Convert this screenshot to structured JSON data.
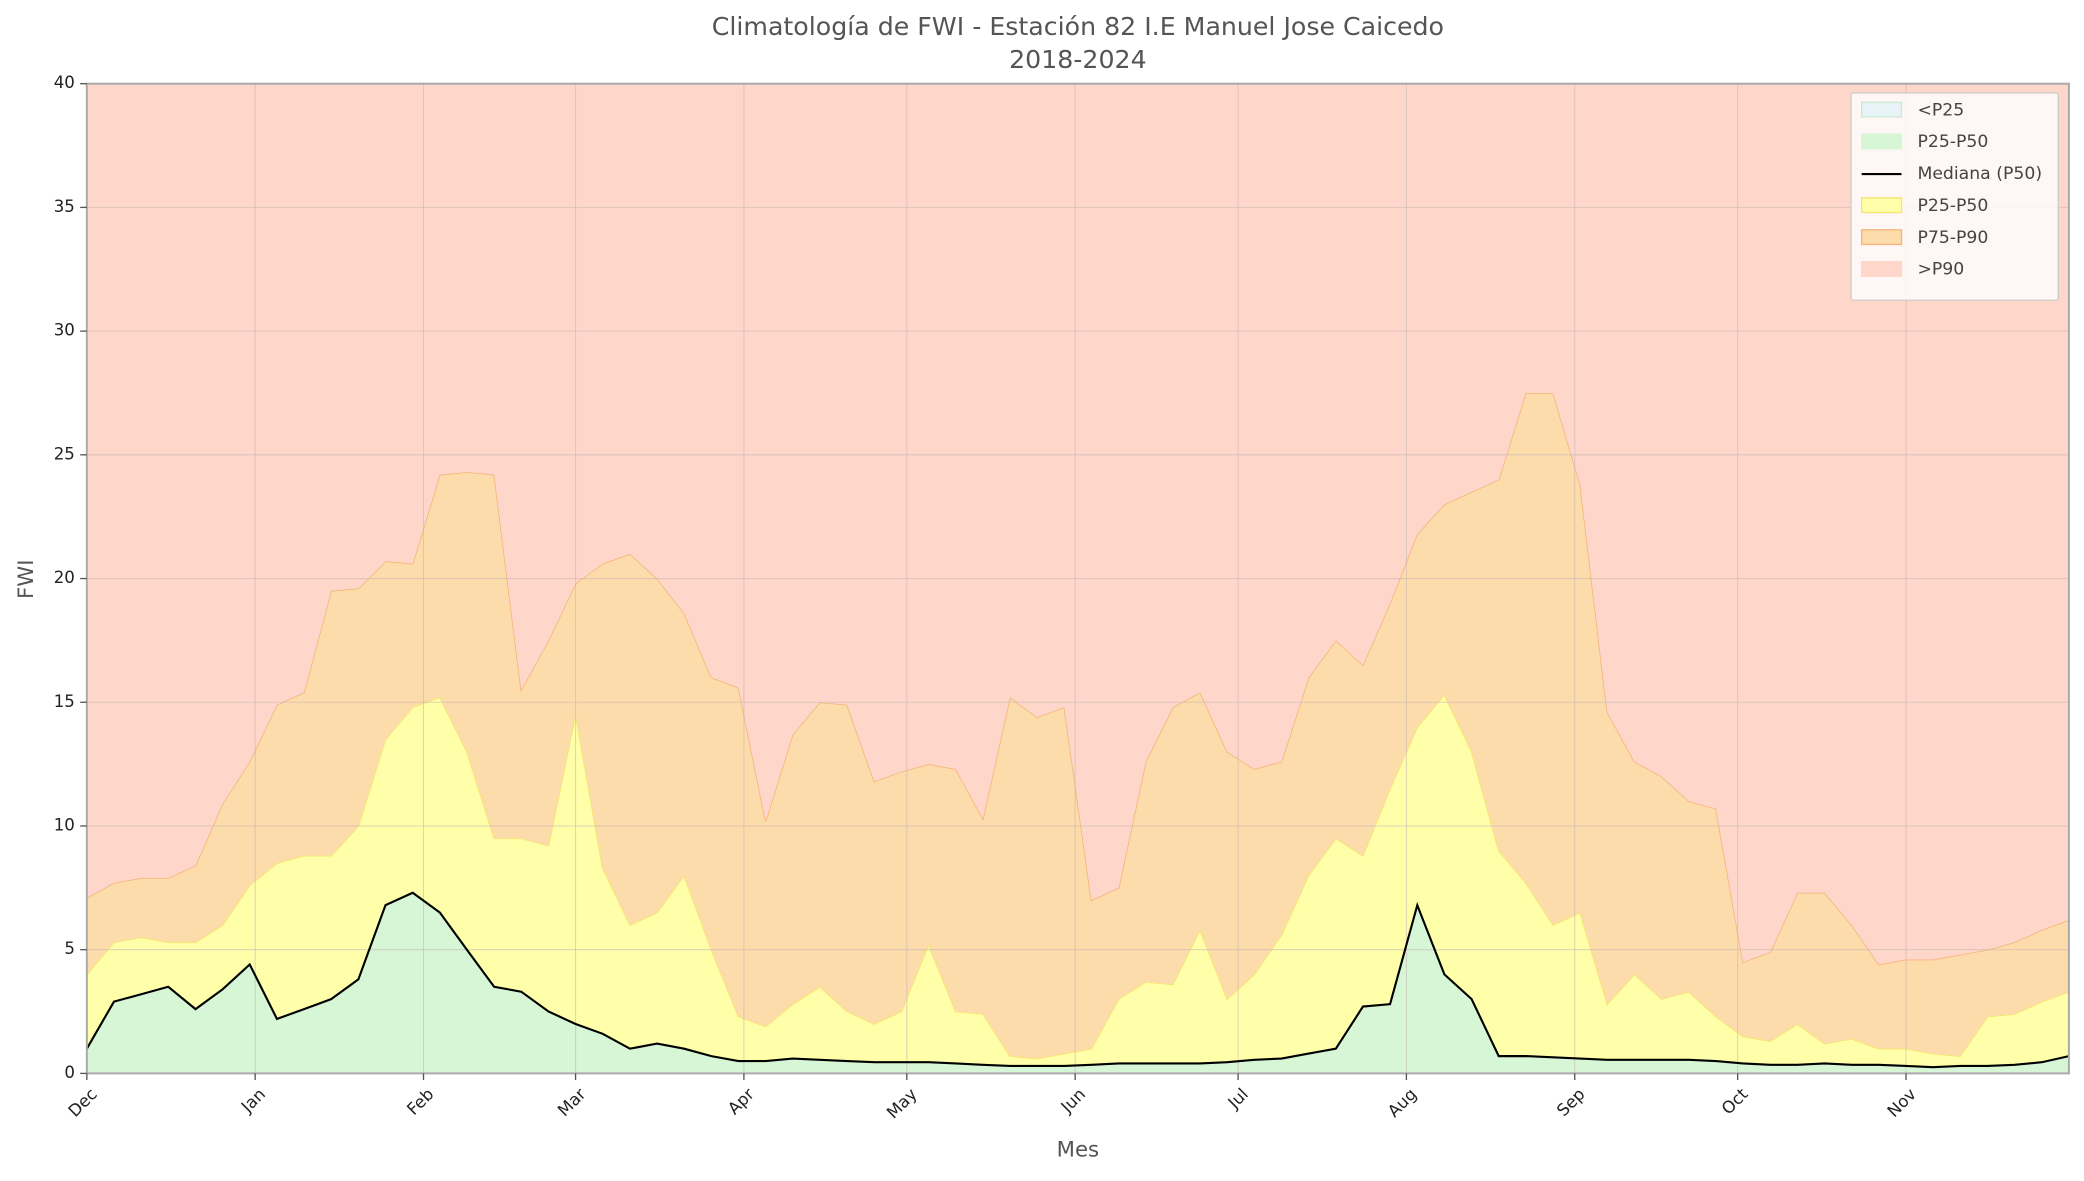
{
  "chart_data": {
    "type": "area",
    "title": "Climatología de FWI - Estación 82 I.E Manuel Jose Caicedo",
    "subtitle": "2018-2024",
    "xlabel": "Mes",
    "ylabel": "FWI",
    "x": [
      0,
      5,
      10,
      15,
      20,
      25,
      30,
      35,
      40,
      45,
      50,
      55,
      60,
      65,
      70,
      75,
      80,
      85,
      90,
      95,
      100,
      105,
      110,
      115,
      120,
      125,
      130,
      135,
      140,
      145,
      150,
      155,
      160,
      165,
      170,
      175,
      180,
      185,
      190,
      195,
      200,
      205,
      210,
      215,
      220,
      225,
      230,
      235,
      240,
      245,
      250,
      255,
      260,
      265,
      270,
      275,
      280,
      285,
      290,
      295,
      300,
      305,
      310,
      315,
      320,
      325,
      330,
      335,
      340,
      345,
      350,
      355,
      360,
      365
    ],
    "xlim": [
      0,
      365
    ],
    "xticks": [
      {
        "value": 0,
        "label": "Dec"
      },
      {
        "value": 31,
        "label": "Jan"
      },
      {
        "value": 62,
        "label": "Feb"
      },
      {
        "value": 90,
        "label": "Mar"
      },
      {
        "value": 121,
        "label": "Apr"
      },
      {
        "value": 151,
        "label": "May"
      },
      {
        "value": 182,
        "label": "Jun"
      },
      {
        "value": 212,
        "label": "Jul"
      },
      {
        "value": 243,
        "label": "Aug"
      },
      {
        "value": 274,
        "label": "Sep"
      },
      {
        "value": 304,
        "label": "Oct"
      },
      {
        "value": 335,
        "label": "Nov"
      }
    ],
    "ylim": [
      0,
      40
    ],
    "yticks": [
      0,
      5,
      10,
      15,
      20,
      25,
      30,
      35,
      40
    ],
    "grid": true,
    "legend": "upper right",
    "series": [
      {
        "name": "<P25",
        "kind": "area",
        "color": "#e8f3f7",
        "edgecolor": "#c8ecd0",
        "values": [
          0.2,
          0.4,
          0.6,
          0.7,
          0.6,
          0.5,
          0.4,
          0.3,
          0.3,
          0.4,
          0.7,
          2.4,
          2.2,
          1.5,
          0.6,
          0.5,
          0.5,
          0.4,
          0.3,
          0.3,
          0.3,
          0.3,
          0.3,
          0.25,
          0.2,
          0.2,
          0.2,
          0.2,
          0.15,
          0.15,
          0.15,
          0.15,
          0.1,
          0.1,
          0.1,
          0.1,
          0.1,
          0.1,
          0.1,
          0.15,
          0.15,
          0.15,
          0.2,
          0.25,
          0.3,
          0.35,
          0.4,
          0.35,
          0.5,
          0.6,
          0.5,
          0.4,
          0.2,
          0.2,
          0.2,
          0.2,
          0.2,
          0.2,
          0.2,
          0.2,
          0.2,
          0.15,
          0.1,
          0.1,
          0.1,
          0.1,
          0.1,
          0.1,
          0.1,
          0.1,
          0.1,
          0.1,
          0.15,
          0.2
        ]
      },
      {
        "name": "P25-P50",
        "kind": "area",
        "color": "#d6f6d6",
        "edgecolor": "#d6f6d6",
        "values": [
          1.0,
          2.9,
          3.2,
          3.5,
          2.6,
          3.4,
          4.4,
          2.2,
          2.6,
          3.0,
          3.8,
          6.8,
          7.3,
          6.5,
          5.0,
          3.5,
          3.3,
          2.5,
          2.0,
          1.6,
          1.0,
          1.2,
          1.0,
          0.7,
          0.5,
          0.5,
          0.6,
          0.55,
          0.5,
          0.45,
          0.45,
          0.45,
          0.4,
          0.35,
          0.3,
          0.3,
          0.3,
          0.35,
          0.4,
          0.4,
          0.4,
          0.4,
          0.45,
          0.55,
          0.6,
          0.8,
          1.0,
          2.7,
          2.8,
          6.8,
          4.0,
          3.0,
          0.7,
          0.7,
          0.65,
          0.6,
          0.55,
          0.55,
          0.55,
          0.55,
          0.5,
          0.4,
          0.35,
          0.35,
          0.4,
          0.35,
          0.35,
          0.3,
          0.25,
          0.3,
          0.3,
          0.35,
          0.45,
          0.7
        ]
      },
      {
        "name": "Mediana (P50)",
        "kind": "line",
        "color": "#000000",
        "values": [
          1.0,
          2.9,
          3.2,
          3.5,
          2.6,
          3.4,
          4.4,
          2.2,
          2.6,
          3.0,
          3.8,
          6.8,
          7.3,
          6.5,
          5.0,
          3.5,
          3.3,
          2.5,
          2.0,
          1.6,
          1.0,
          1.2,
          1.0,
          0.7,
          0.5,
          0.5,
          0.6,
          0.55,
          0.5,
          0.45,
          0.45,
          0.45,
          0.4,
          0.35,
          0.3,
          0.3,
          0.3,
          0.35,
          0.4,
          0.4,
          0.4,
          0.4,
          0.45,
          0.55,
          0.6,
          0.8,
          1.0,
          2.7,
          2.8,
          6.8,
          4.0,
          3.0,
          0.7,
          0.7,
          0.65,
          0.6,
          0.55,
          0.55,
          0.55,
          0.55,
          0.5,
          0.4,
          0.35,
          0.35,
          0.4,
          0.35,
          0.35,
          0.3,
          0.25,
          0.3,
          0.3,
          0.35,
          0.45,
          0.7
        ]
      },
      {
        "name": "P25-P50",
        "kind": "area",
        "color": "#ffffaa",
        "edgecolor": "#f5e66a",
        "values": [
          4.0,
          5.3,
          5.5,
          5.3,
          5.3,
          6.0,
          7.6,
          8.5,
          8.8,
          8.8,
          10.0,
          13.5,
          14.8,
          15.2,
          13.0,
          9.5,
          9.5,
          9.2,
          14.5,
          8.3,
          6.0,
          6.5,
          8.0,
          5.0,
          2.3,
          1.9,
          2.8,
          3.5,
          2.5,
          2.0,
          2.5,
          5.2,
          2.5,
          2.4,
          0.7,
          0.6,
          0.8,
          1.0,
          3.0,
          3.7,
          3.6,
          5.8,
          3.0,
          4.0,
          5.6,
          8.0,
          9.5,
          8.8,
          11.5,
          14.0,
          15.3,
          13.0,
          9.0,
          7.7,
          6.0,
          6.5,
          2.8,
          4.0,
          3.0,
          3.3,
          2.3,
          1.5,
          1.3,
          2.0,
          1.2,
          1.4,
          1.0,
          1.0,
          0.8,
          0.7,
          2.3,
          2.4,
          2.9,
          3.3
        ]
      },
      {
        "name": "P75-P90",
        "kind": "area",
        "color": "#fddcac",
        "edgecolor": "#f5b47a",
        "values": [
          7.1,
          7.7,
          7.9,
          7.9,
          8.4,
          10.9,
          12.6,
          14.9,
          15.4,
          19.5,
          19.6,
          20.7,
          20.6,
          24.2,
          24.3,
          24.2,
          15.5,
          17.5,
          19.8,
          20.6,
          21.0,
          20.0,
          18.6,
          16.0,
          15.6,
          10.2,
          13.7,
          15.0,
          14.9,
          11.8,
          12.2,
          12.5,
          12.3,
          10.3,
          15.2,
          14.4,
          14.8,
          7.0,
          7.5,
          12.6,
          14.8,
          15.4,
          13.0,
          12.3,
          12.6,
          16.0,
          17.5,
          16.5,
          19.0,
          21.8,
          23.0,
          23.5,
          24.0,
          27.5,
          27.5,
          23.8,
          14.6,
          12.6,
          12.0,
          11.0,
          10.7,
          4.5,
          4.9,
          7.3,
          7.3,
          6.0,
          4.4,
          4.6,
          4.6,
          4.8,
          5.0,
          5.3,
          5.8,
          6.2
        ]
      },
      {
        "name": ">P90",
        "kind": "area",
        "color": "#ffd6ca",
        "edgecolor": "#ffd6ca"
      }
    ]
  }
}
